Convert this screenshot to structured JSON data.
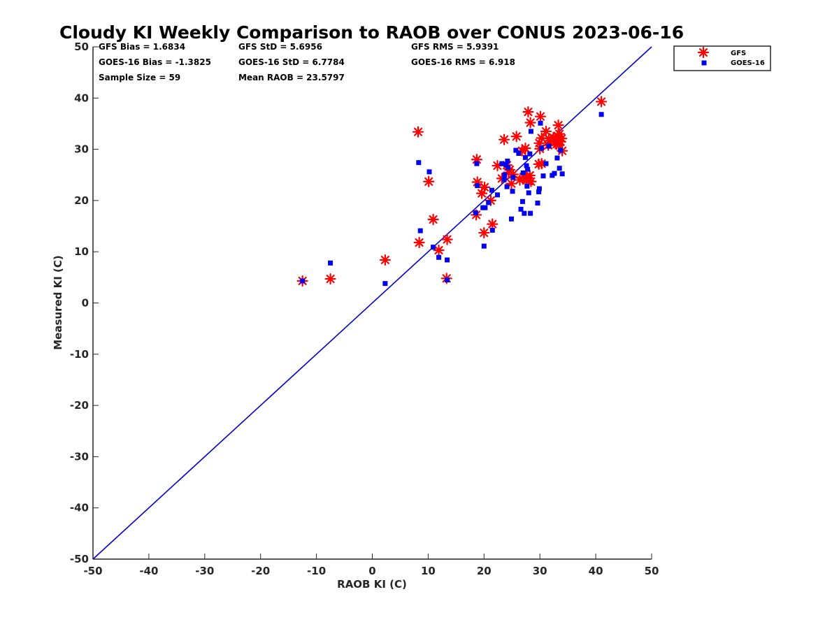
{
  "chart_data": {
    "type": "scatter",
    "title": "Cloudy KI Weekly Comparison to RAOB over CONUS 2023-06-16",
    "xlabel": "RAOB KI (C)",
    "ylabel": "Measured KI (C)",
    "xlim": [
      -50,
      50
    ],
    "ylim": [
      -50,
      50
    ],
    "xticks": [
      "-50",
      "-40",
      "-30",
      "-20",
      "-10",
      "0",
      "10",
      "20",
      "30",
      "40",
      "50"
    ],
    "yticks": [
      "-50",
      "-40",
      "-30",
      "-20",
      "-10",
      "0",
      "10",
      "20",
      "30",
      "40",
      "50"
    ],
    "grid": false,
    "legend_position": "top-right-outside",
    "reference_line": {
      "type": "one-to-one",
      "color": "#0000d0"
    },
    "stats": [
      "GFS Bias = 1.6834",
      "GFS StD = 5.6956",
      "GFS RMS = 5.9391",
      "GOES-16 Bias = -1.3825",
      "GOES-16 StD = 6.7784",
      "GOES-16 RMS = 6.918",
      "Sample Size = 59",
      "Mean RAOB = 23.5797"
    ],
    "series": [
      {
        "name": "GFS",
        "marker": "asterisk",
        "color": "#ff0000",
        "x": [
          -12.5,
          -7.5,
          2.3,
          8.2,
          8.4,
          10.1,
          10.9,
          11.9,
          13.3,
          13.4,
          18.6,
          18.7,
          18.8,
          19.6,
          20.0,
          20.1,
          21.2,
          21.5,
          22.4,
          23.2,
          23.6,
          24.1,
          24.4,
          24.9,
          25.2,
          25.8,
          26.4,
          26.8,
          27.1,
          27.4,
          27.6,
          27.9,
          28.0,
          28.3,
          28.4,
          29.8,
          29.9,
          30.0,
          30.1,
          30.3,
          31.1,
          31.6,
          32.0,
          32.4,
          32.7,
          33.0,
          33.2,
          33.3,
          33.4,
          33.5,
          33.7,
          33.9,
          34.0,
          41.0,
          27.5,
          28.2,
          30.3,
          31.5,
          24.6
        ],
        "y": [
          4.3,
          4.7,
          8.4,
          33.4,
          11.8,
          23.7,
          16.3,
          10.3,
          4.8,
          12.4,
          17.2,
          28.0,
          23.6,
          21.4,
          13.7,
          22.6,
          20.0,
          15.4,
          26.8,
          24.3,
          31.9,
          26.9,
          25.5,
          23.3,
          25.1,
          32.5,
          24.0,
          29.7,
          24.6,
          30.2,
          23.9,
          37.3,
          23.8,
          35.2,
          23.7,
          27.1,
          31.2,
          30.1,
          36.4,
          32.2,
          33.5,
          32.1,
          31.7,
          32.3,
          31.4,
          31.0,
          32.6,
          34.7,
          30.8,
          33.0,
          31.5,
          32.1,
          29.7,
          39.3,
          24.5,
          24.9,
          27.2,
          30.8,
          26.0
        ]
      },
      {
        "name": "GOES-16",
        "marker": "square",
        "color": "#0000ee",
        "x": [
          -12.5,
          -7.5,
          2.3,
          8.3,
          8.6,
          10.2,
          10.9,
          11.9,
          13.4,
          13.4,
          18.5,
          18.7,
          18.8,
          19.8,
          20.0,
          20.2,
          20.8,
          21.4,
          21.5,
          22.4,
          23.2,
          23.6,
          23.7,
          23.9,
          24.1,
          24.2,
          24.3,
          24.9,
          25.1,
          25.2,
          25.7,
          26.2,
          26.6,
          26.9,
          27.0,
          27.2,
          27.4,
          27.6,
          27.7,
          27.8,
          28.0,
          28.2,
          28.3,
          28.4,
          29.6,
          29.8,
          29.9,
          30.1,
          30.3,
          30.6,
          31.1,
          31.6,
          32.2,
          32.6,
          33.1,
          33.5,
          33.7,
          34.0,
          41.0
        ],
        "y": [
          4.3,
          7.8,
          3.8,
          27.4,
          14.1,
          25.6,
          10.9,
          8.9,
          8.4,
          4.5,
          17.6,
          27.2,
          22.9,
          18.6,
          11.1,
          18.6,
          19.6,
          22.0,
          14.2,
          21.1,
          27.2,
          24.1,
          25.0,
          27.0,
          22.7,
          27.7,
          26.4,
          16.4,
          21.8,
          24.5,
          29.8,
          29.2,
          18.3,
          19.8,
          25.4,
          17.5,
          28.4,
          26.8,
          22.8,
          26.1,
          21.5,
          29.1,
          17.5,
          33.5,
          19.5,
          21.7,
          22.3,
          35.1,
          30.2,
          24.8,
          27.2,
          30.6,
          24.9,
          25.3,
          28.3,
          26.3,
          29.8,
          25.2,
          36.8
        ]
      }
    ]
  }
}
